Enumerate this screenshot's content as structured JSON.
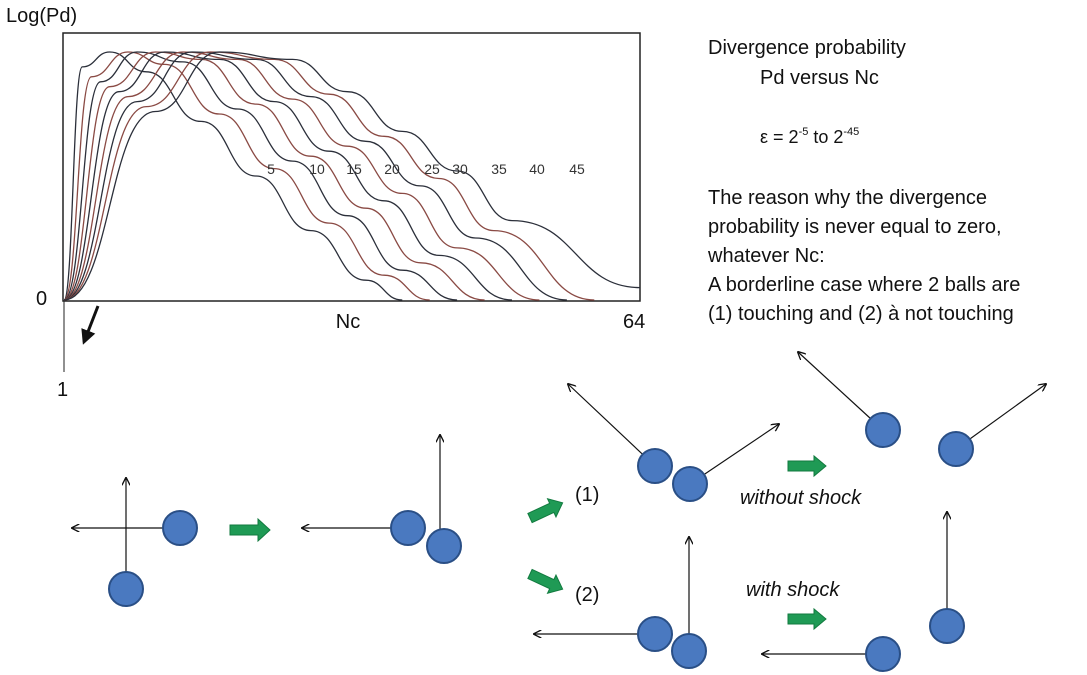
{
  "chart": {
    "y_label": "Log(Pd)",
    "x_label": "Nc",
    "y_zero": "0",
    "x_max": "64",
    "x_one": "1",
    "curve_labels": [
      "5",
      "10",
      "15",
      "20",
      "25",
      "30",
      "35",
      "40",
      "45"
    ]
  },
  "chart_data": {
    "type": "line",
    "xlabel": "Nc",
    "ylabel": "Log(Pd)",
    "xlim": [
      1,
      64
    ],
    "series": [
      {
        "name": "5",
        "x": [
          1,
          3,
          6,
          10,
          16,
          22,
          28,
          34,
          38
        ],
        "y": [
          0,
          0.94,
          1.0,
          0.92,
          0.72,
          0.5,
          0.28,
          0.08,
          0
        ]
      },
      {
        "name": "10",
        "x": [
          1,
          4,
          8,
          12,
          18,
          24,
          30,
          36,
          41
        ],
        "y": [
          0,
          0.9,
          1.0,
          0.95,
          0.75,
          0.53,
          0.31,
          0.1,
          0
        ]
      },
      {
        "name": "15",
        "x": [
          1,
          5,
          9,
          14,
          20,
          26,
          32,
          38,
          44
        ],
        "y": [
          0,
          0.88,
          1.0,
          0.96,
          0.77,
          0.56,
          0.34,
          0.12,
          0
        ]
      },
      {
        "name": "20",
        "x": [
          1,
          6,
          11,
          16,
          22,
          28,
          34,
          40,
          47
        ],
        "y": [
          0,
          0.86,
          1.0,
          0.97,
          0.79,
          0.58,
          0.37,
          0.15,
          0
        ]
      },
      {
        "name": "25",
        "x": [
          1,
          7,
          12,
          18,
          24,
          30,
          36,
          42,
          50
        ],
        "y": [
          0,
          0.84,
          1.0,
          0.97,
          0.8,
          0.6,
          0.4,
          0.18,
          0
        ]
      },
      {
        "name": "30",
        "x": [
          1,
          8,
          14,
          20,
          26,
          32,
          38,
          44,
          53
        ],
        "y": [
          0,
          0.82,
          1.0,
          0.97,
          0.81,
          0.62,
          0.43,
          0.21,
          0
        ]
      },
      {
        "name": "35",
        "x": [
          1,
          9,
          15,
          22,
          28,
          34,
          40,
          46,
          56
        ],
        "y": [
          0,
          0.8,
          1.0,
          0.97,
          0.82,
          0.64,
          0.46,
          0.25,
          0
        ]
      },
      {
        "name": "40",
        "x": [
          1,
          10,
          17,
          24,
          30,
          36,
          42,
          48,
          59
        ],
        "y": [
          0,
          0.78,
          1.0,
          0.97,
          0.83,
          0.66,
          0.49,
          0.28,
          0
        ]
      },
      {
        "name": "45",
        "x": [
          1,
          11,
          18,
          26,
          32,
          38,
          44,
          50,
          64
        ],
        "y": [
          0,
          0.76,
          1.0,
          0.97,
          0.84,
          0.68,
          0.52,
          0.32,
          0.05
        ]
      }
    ]
  },
  "text": {
    "title_line1": "Divergence probability",
    "title_line2": "Pd versus Nc",
    "epsilon_prefix": "ε = 2",
    "epsilon_exp1": "-5",
    "epsilon_mid": "to 2",
    "epsilon_exp2": "-45",
    "reason": [
      "The reason why the divergence",
      "probability is never equal to zero,",
      "whatever Nc:",
      "A borderline case where 2 balls are",
      "(1) touching and (2) à not touching"
    ]
  },
  "diagram": {
    "case1_label": "(1)",
    "case2_label": "(2)",
    "without_shock": "without shock",
    "with_shock": "with shock"
  },
  "colors": {
    "ball_fill": "#4a79c0",
    "ball_stroke": "#2a4f86",
    "arrow_green": "#1f9a55",
    "curve_dark": "#2b2f3a",
    "curve_brown": "#8a4a44"
  }
}
